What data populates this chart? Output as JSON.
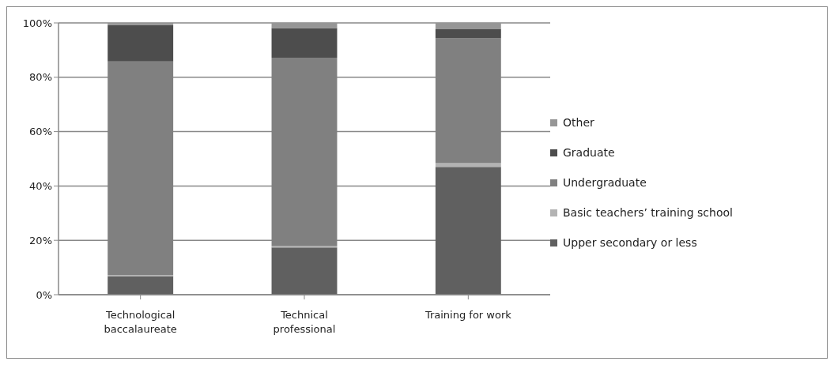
{
  "chart_data": {
    "type": "bar",
    "stacked": true,
    "categories": [
      "Technological baccalaureate",
      "Technical professional",
      "Training for work"
    ],
    "series": [
      {
        "name": "Upper secondary or less",
        "color": "#606060",
        "values": [
          6.8,
          17.4,
          47
        ]
      },
      {
        "name": "Basic teachers’ training school",
        "color": "#b3b3b3",
        "values": [
          0.5,
          0.5,
          1.4
        ]
      },
      {
        "name": "Undergraduate",
        "color": "#808080",
        "values": [
          78.5,
          69.3,
          45.9
        ]
      },
      {
        "name": "Graduate",
        "color": "#4d4d4d",
        "values": [
          13.5,
          10.9,
          3.4
        ]
      },
      {
        "name": "Other",
        "color": "#969696",
        "values": [
          0.7,
          1.9,
          2.3
        ]
      }
    ],
    "ylim": [
      0,
      100
    ],
    "yticks": [
      {
        "value": 0,
        "label": "0%"
      },
      {
        "value": 20,
        "label": "20%"
      },
      {
        "value": 40,
        "label": "40%"
      },
      {
        "value": 60,
        "label": "60%"
      },
      {
        "value": 80,
        "label": "80%"
      },
      {
        "value": 100,
        "label": "100%"
      }
    ],
    "grid": "y",
    "legend": "right"
  }
}
